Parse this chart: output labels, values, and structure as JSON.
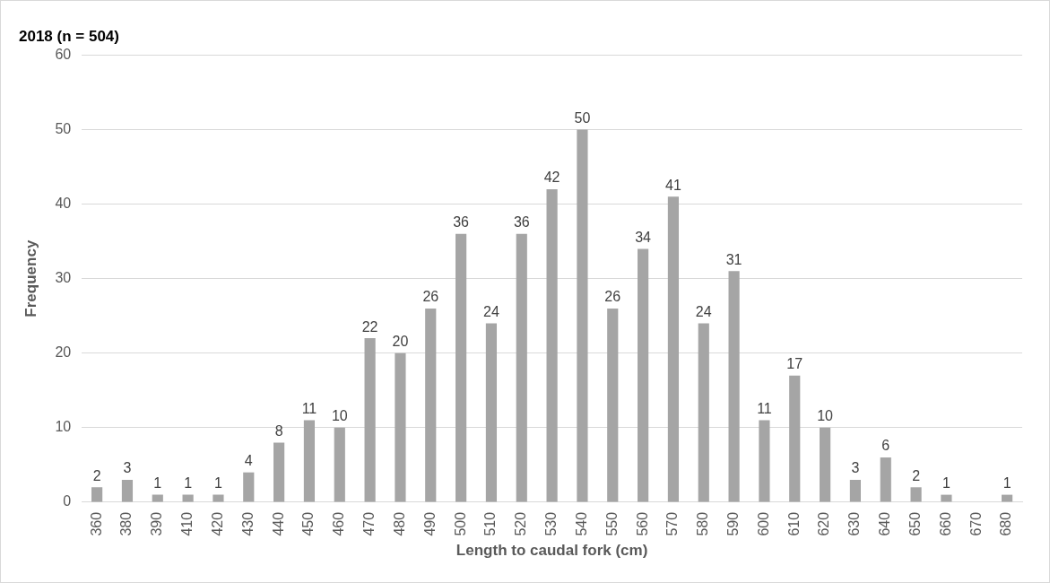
{
  "chart_data": {
    "type": "bar",
    "title": "2018 (n = 504)",
    "xlabel": "Length to caudal fork (cm)",
    "ylabel": "Frequency",
    "categories": [
      "360",
      "380",
      "390",
      "410",
      "420",
      "430",
      "440",
      "450",
      "460",
      "470",
      "480",
      "490",
      "500",
      "510",
      "520",
      "530",
      "540",
      "550",
      "560",
      "570",
      "580",
      "590",
      "600",
      "610",
      "620",
      "630",
      "640",
      "650",
      "660",
      "670",
      "680"
    ],
    "values": [
      2,
      3,
      1,
      1,
      1,
      4,
      8,
      11,
      10,
      22,
      20,
      26,
      36,
      24,
      36,
      42,
      50,
      26,
      34,
      41,
      24,
      31,
      11,
      17,
      10,
      3,
      6,
      2,
      1,
      null,
      1
    ],
    "color": "#a5a5a5",
    "ylim": [
      0,
      60
    ],
    "yticks": [
      0,
      10,
      20,
      30,
      40,
      50,
      60
    ],
    "grid": "y",
    "data_labels": true,
    "legend": false
  }
}
